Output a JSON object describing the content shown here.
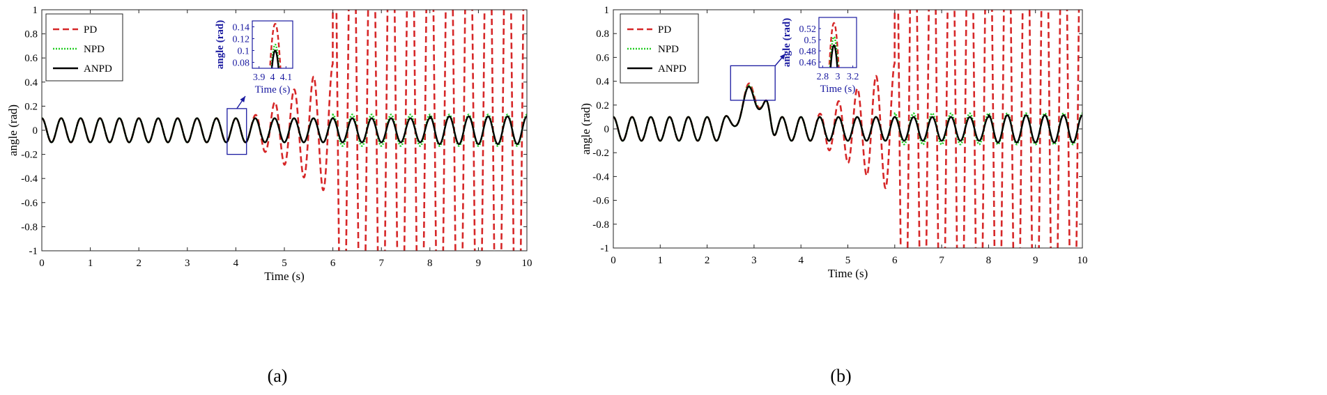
{
  "chart_data": [
    {
      "panel_label": "(a)",
      "type": "line",
      "title": "",
      "xlabel": "Time (s)",
      "ylabel": "angle (rad)",
      "xlim": [
        0,
        10
      ],
      "ylim": [
        -1,
        1
      ],
      "x_ticks": [
        "0",
        "1",
        "2",
        "3",
        "4",
        "5",
        "6",
        "7",
        "8",
        "9",
        "10"
      ],
      "y_ticks": [
        "1",
        "0.8",
        "0.6",
        "0.4",
        "0.2",
        "0",
        "-0.2",
        "-0.4",
        "-0.6",
        "-0.8",
        "-1"
      ],
      "legend": [
        "PD",
        "NPD",
        "ANPD"
      ],
      "legend_position": "top-left",
      "series": [
        {
          "name": "PD",
          "style": "dashed",
          "color": "#d62728",
          "model": {
            "base_amplitude": 0.1,
            "frequency_hz": 2.5,
            "growth_onset_s": 4.3,
            "divergence_s": 6.0,
            "peak_values": [
              0.14,
              0.27,
              0.8,
              -0.47
            ]
          }
        },
        {
          "name": "NPD",
          "style": "dotted",
          "color": "#22cc22",
          "model": {
            "base_amplitude": 0.1,
            "frequency_hz": 2.5,
            "late_amplitude": 0.13
          }
        },
        {
          "name": "ANPD",
          "style": "solid",
          "color": "#000000",
          "model": {
            "base_amplitude": 0.1,
            "frequency_hz": 2.5
          }
        }
      ],
      "inset": {
        "xlabel": "Time (s)",
        "ylabel": "angle (rad)",
        "xlim": [
          3.85,
          4.15
        ],
        "ylim": [
          0.07,
          0.15
        ],
        "x_ticks": [
          "3.9",
          "4",
          "4.1"
        ],
        "y_ticks": [
          "0.14",
          "0.12",
          "0.1",
          "0.08"
        ],
        "peaks": {
          "PD": 0.145,
          "NPD": 0.11,
          "ANPD": 0.1
        },
        "peak_time": 4.02,
        "zoom_box": {
          "t0": 3.82,
          "t1": 4.22,
          "y0": -0.2,
          "y1": 0.18
        },
        "color": "#1a1aa0"
      }
    },
    {
      "panel_label": "(b)",
      "type": "line",
      "title": "",
      "xlabel": "Time (s)",
      "ylabel": "angle (rad)",
      "xlim": [
        0,
        10
      ],
      "ylim": [
        -1,
        1
      ],
      "x_ticks": [
        "0",
        "1",
        "2",
        "3",
        "4",
        "5",
        "6",
        "7",
        "8",
        "9",
        "10"
      ],
      "y_ticks": [
        "1",
        "0.8",
        "0.6",
        "0.4",
        "0.2",
        "0",
        "-0.2",
        "-0.4",
        "-0.6",
        "-0.8",
        "-1"
      ],
      "legend": [
        "PD",
        "NPD",
        "ANPD"
      ],
      "legend_position": "top-left",
      "series": [
        {
          "name": "PD",
          "style": "dashed",
          "color": "#d62728",
          "model": {
            "base_amplitude": 0.1,
            "frequency_hz": 2.5,
            "disturbance_peak": 0.52,
            "growth_onset_s": 4.3,
            "divergence_s": 6.0,
            "peak_values": [
              0.18,
              0.27,
              0.6,
              -0.48
            ]
          }
        },
        {
          "name": "NPD",
          "style": "dotted",
          "color": "#22cc22",
          "model": {
            "base_amplitude": 0.1,
            "frequency_hz": 2.5,
            "disturbance_peak": 0.5,
            "late_amplitude": 0.13
          }
        },
        {
          "name": "ANPD",
          "style": "solid",
          "color": "#000000",
          "model": {
            "base_amplitude": 0.1,
            "frequency_hz": 2.5,
            "disturbance_peak": 0.49
          }
        }
      ],
      "inset": {
        "xlabel": "Time (s)",
        "ylabel": "angle (rad)",
        "xlim": [
          2.75,
          3.25
        ],
        "ylim": [
          0.45,
          0.54
        ],
        "x_ticks": [
          "2.8",
          "3",
          "3.2"
        ],
        "y_ticks": [
          "0.52",
          "0.5",
          "0.48",
          "0.46"
        ],
        "peaks": {
          "PD": 0.53,
          "NPD": 0.505,
          "ANPD": 0.49
        },
        "peak_time": 2.95,
        "zoom_box": {
          "t0": 2.5,
          "t1": 3.45,
          "y0": 0.24,
          "y1": 0.53
        },
        "color": "#1a1aa0"
      }
    }
  ]
}
